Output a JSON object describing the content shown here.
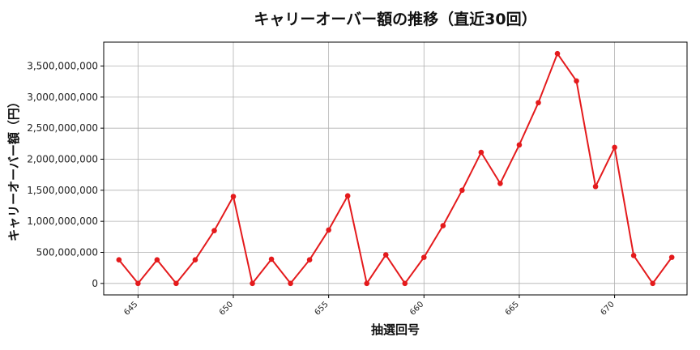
{
  "chart_data": {
    "type": "line",
    "title": "キャリーオーバー額の推移（直近30回）",
    "xlabel": "抽選回号",
    "ylabel": "キャリーオーバー額（円）",
    "x": [
      644,
      645,
      646,
      647,
      648,
      649,
      650,
      651,
      652,
      653,
      654,
      655,
      656,
      657,
      658,
      659,
      660,
      661,
      662,
      663,
      664,
      665,
      666,
      667,
      668,
      669,
      670,
      671,
      672,
      673
    ],
    "series": [
      {
        "values": [
          380000000,
          0,
          380000000,
          0,
          380000000,
          850000000,
          1400000000,
          0,
          390000000,
          0,
          380000000,
          860000000,
          1410000000,
          0,
          460000000,
          0,
          420000000,
          930000000,
          1500000000,
          2110000000,
          1610000000,
          2230000000,
          2910000000,
          3700000000,
          3260000000,
          1560000000,
          2190000000,
          450000000,
          0,
          420000000
        ]
      }
    ],
    "xticks": [
      645,
      650,
      655,
      660,
      665,
      670
    ],
    "xtick_labels": [
      "645",
      "650",
      "655",
      "660",
      "665",
      "670"
    ],
    "yticks": [
      0,
      500000000,
      1000000000,
      1500000000,
      2000000000,
      2500000000,
      3000000000,
      3500000000
    ],
    "ytick_labels": [
      "0",
      "500,000,000",
      "1,000,000,000",
      "1,500,000,000",
      "2,000,000,000",
      "2,500,000,000",
      "3,000,000,000",
      "3,500,000,000"
    ],
    "xlim": [
      643.2,
      673.8
    ],
    "ylim": [
      -185000000,
      3885000000
    ],
    "grid": true,
    "color": "#e41a1c"
  }
}
